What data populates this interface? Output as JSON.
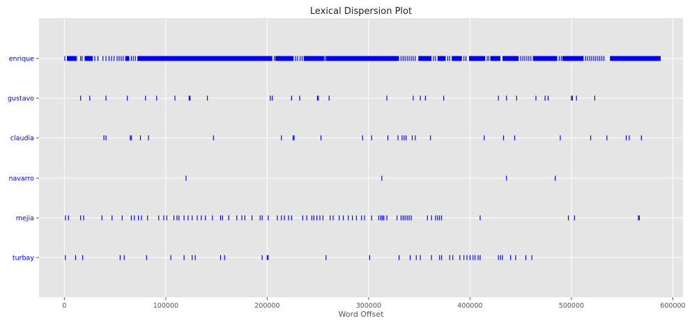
{
  "chart_data": {
    "type": "scatter",
    "title": "Lexical Dispersion Plot",
    "xlabel": "Word Offset",
    "ylabel": "",
    "xlim": [
      -25000,
      610000
    ],
    "grid": true,
    "marker_color": "#0000ff",
    "x_ticks": [
      0,
      100000,
      200000,
      300000,
      400000,
      500000,
      600000
    ],
    "x_tick_labels": [
      "0",
      "100000",
      "200000",
      "300000",
      "400000",
      "500000",
      "600000"
    ],
    "categories": [
      "enrique",
      "gustavo",
      "claudia",
      "navarro",
      "mejia",
      "turbay"
    ],
    "series": [
      {
        "label": "enrique",
        "dense_ranges": [
          [
            0,
            600
          ],
          [
            2500,
            11500
          ],
          [
            20000,
            28000
          ],
          [
            60000,
            64000
          ],
          [
            72000,
            205000
          ],
          [
            208000,
            226000
          ],
          [
            236000,
            256000
          ],
          [
            258000,
            330000
          ],
          [
            349000,
            362000
          ],
          [
            368000,
            376000
          ],
          [
            382000,
            392000
          ],
          [
            399000,
            415000
          ],
          [
            420000,
            430000
          ],
          [
            432000,
            448000
          ],
          [
            462000,
            486000
          ],
          [
            491000,
            512000
          ],
          [
            538000,
            588000
          ]
        ],
        "x": [
          12000,
          16000,
          17500,
          30000,
          33000,
          38000,
          41000,
          44000,
          46500,
          49000,
          52000,
          54000,
          56000,
          58000,
          66000,
          68000,
          70000,
          207000,
          228000,
          230000,
          232500,
          234500,
          257000,
          332000,
          334000,
          336000,
          338000,
          340000,
          342000,
          344000,
          346000,
          364000,
          366000,
          378000,
          380000,
          394000,
          396000,
          417000,
          418500,
          450000,
          452000,
          454000,
          456000,
          458000,
          460000,
          488000,
          490000,
          514000,
          516000,
          518000,
          520000,
          522000,
          524000,
          526000,
          528000,
          530000,
          532000
        ]
      },
      {
        "label": "gustavo",
        "x": [
          16000,
          25000,
          41000,
          62000,
          80000,
          91000,
          109000,
          123000,
          124000,
          141000,
          203000,
          205000,
          224000,
          232000,
          249500,
          250500,
          261000,
          318000,
          344000,
          351000,
          356000,
          374000,
          428000,
          436000,
          446000,
          465000,
          474000,
          477000,
          500000,
          501000,
          505000,
          523000
        ]
      },
      {
        "label": "claudia",
        "x": [
          39000,
          41000,
          65000,
          66000,
          75000,
          83000,
          147000,
          214000,
          225500,
          226500,
          253000,
          294000,
          303000,
          319000,
          329000,
          333000,
          335000,
          337000,
          343000,
          346000,
          361000,
          414000,
          433000,
          444000,
          489000,
          519000,
          535000,
          554000,
          557000,
          569000
        ]
      },
      {
        "label": "navarro",
        "x": [
          120000,
          313000,
          436000,
          484000
        ]
      },
      {
        "label": "mejia",
        "x": [
          1000,
          4000,
          16000,
          19000,
          37000,
          47000,
          57000,
          66000,
          69000,
          73000,
          76000,
          82000,
          93000,
          98000,
          101000,
          108000,
          111000,
          113000,
          118000,
          122000,
          126000,
          131000,
          135000,
          139000,
          146000,
          154000,
          156000,
          162000,
          170000,
          175000,
          178000,
          185000,
          193000,
          195000,
          201000,
          210000,
          214000,
          217000,
          221000,
          224000,
          235000,
          239000,
          244000,
          246000,
          249000,
          252000,
          255000,
          262000,
          265000,
          271000,
          275000,
          280000,
          284000,
          288000,
          293000,
          296000,
          303000,
          310000,
          312000,
          313500,
          315000,
          318000,
          328000,
          332000,
          334000,
          336000,
          338000,
          340000,
          342000,
          358000,
          362000,
          366000,
          368000,
          370000,
          372000,
          410000,
          497000,
          503000,
          566000,
          567000
        ]
      },
      {
        "label": "turbay",
        "x": [
          1000,
          11000,
          18000,
          55000,
          59000,
          81000,
          105000,
          118000,
          126000,
          129000,
          154000,
          158000,
          195000,
          200000,
          201000,
          258000,
          301000,
          330000,
          341000,
          347000,
          351000,
          362000,
          370000,
          372000,
          380000,
          383000,
          390000,
          394000,
          397000,
          400000,
          403000,
          405000,
          408000,
          410000,
          428000,
          430000,
          432000,
          440000,
          445000,
          455000,
          461000
        ]
      }
    ]
  }
}
